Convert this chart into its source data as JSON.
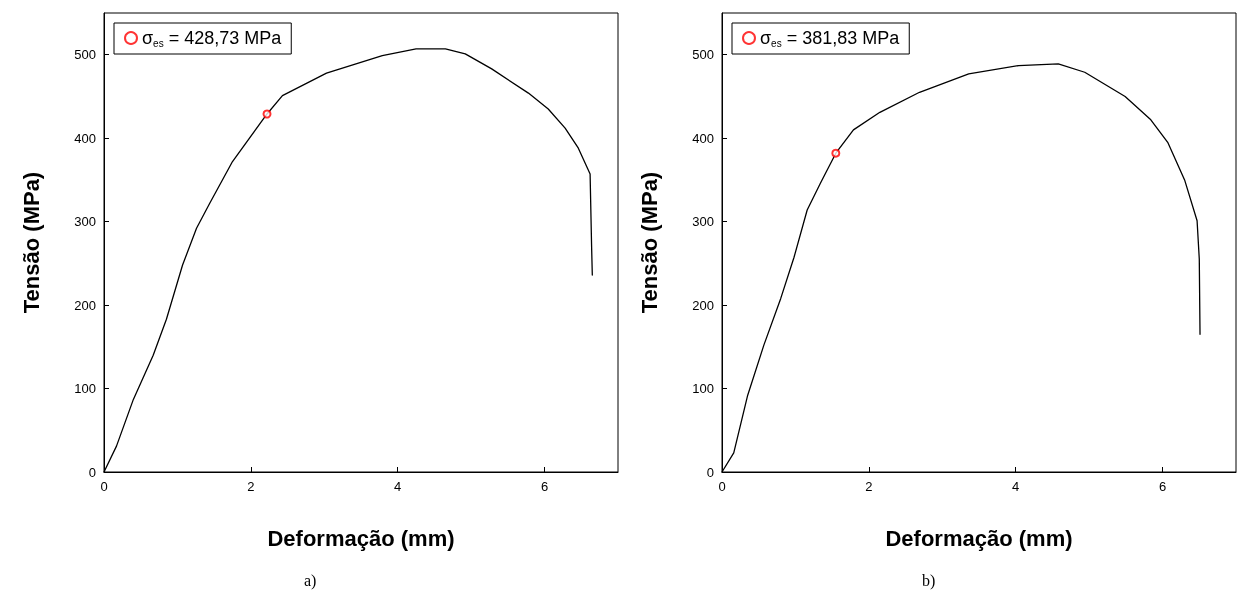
{
  "chart_data": [
    {
      "type": "line",
      "xlabel": "Deformação (mm)",
      "ylabel": "Tensão (MPa)",
      "annotations": [
        "a)"
      ],
      "xlim": [
        0,
        7
      ],
      "xticks": [
        0,
        2,
        4,
        6
      ],
      "ylim": [
        0,
        550
      ],
      "yticks": [
        0,
        100,
        200,
        300,
        400,
        500
      ],
      "grid": false,
      "legend": "top left",
      "series": [
        {
          "color": "#000000",
          "marker": "none",
          "line_style": "solid",
          "x": [
            0,
            0.17,
            0.4,
            0.67,
            0.85,
            1.07,
            1.26,
            1.44,
            1.75,
            2.22,
            2.43,
            3.03,
            3.79,
            4.25,
            4.65,
            4.92,
            5.28,
            5.78,
            6.05,
            6.28,
            6.46,
            6.62,
            6.64,
            6.65
          ],
          "values": [
            0,
            31,
            87,
            140,
            183,
            248,
            292,
            322,
            372,
            429,
            451,
            478,
            499,
            507,
            507,
            501,
            483,
            454,
            435,
            412,
            388,
            357,
            272,
            236
          ]
        },
        {
          "type": "scatter",
          "name": "σ$_{es}$ = 428,73 MPa",
          "color": "#ff0000",
          "marker": "circle",
          "x": [
            2.22
          ],
          "values": [
            429
          ]
        }
      ]
    },
    {
      "type": "line",
      "xlabel": "Deformação (mm)",
      "ylabel": "Tensão (MPa)",
      "annotations": [
        "b)"
      ],
      "xlim": [
        0,
        7
      ],
      "xticks": [
        0,
        2,
        4,
        6
      ],
      "ylim": [
        0,
        550
      ],
      "yticks": [
        0,
        100,
        200,
        300,
        400,
        500
      ],
      "grid": false,
      "legend": "top left",
      "series": [
        {
          "color": "#000000",
          "marker": "none",
          "line_style": "solid",
          "x": [
            0,
            0.16,
            0.35,
            0.57,
            0.8,
            0.98,
            1.16,
            1.34,
            1.55,
            1.79,
            2.15,
            2.69,
            3.36,
            4.04,
            4.58,
            4.94,
            5.49,
            5.84,
            6.07,
            6.3,
            6.47,
            6.5,
            6.51
          ],
          "values": [
            0,
            23,
            92,
            152,
            208,
            257,
            314,
            346,
            382,
            410,
            431,
            455,
            477,
            487,
            489,
            479,
            450,
            422,
            395,
            350,
            301,
            255,
            165
          ]
        },
        {
          "type": "scatter",
          "name": "σ$_{es}$ = 381,83 MPa",
          "color": "#ff0000",
          "marker": "circle",
          "x": [
            1.55
          ],
          "values": [
            382
          ]
        }
      ]
    }
  ]
}
